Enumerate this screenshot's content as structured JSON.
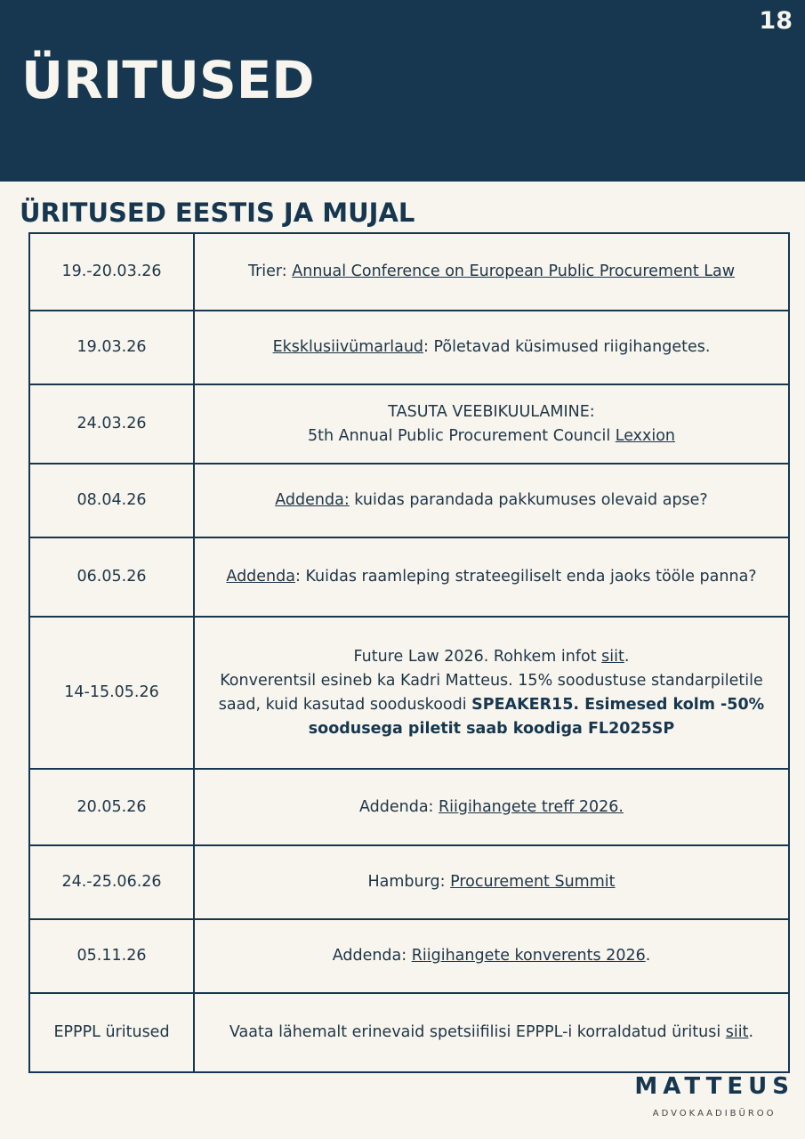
{
  "header": {
    "page_number": "18",
    "title": "ÜRITUSED"
  },
  "section_title": "ÜRITUSED EESTIS JA MUJAL",
  "rows": [
    {
      "date": "19.-20.03.26",
      "h": 87,
      "segments": [
        {
          "t": "Trier: "
        },
        {
          "t": "Annual Conference on European Public Procurement Law",
          "link": true
        }
      ]
    },
    {
      "date": "19.03.26",
      "h": 83,
      "segments": [
        {
          "t": "Eksklusiivümarlaud",
          "link": true
        },
        {
          "t": ": Põletavad küsimused riigihangetes."
        }
      ]
    },
    {
      "date": "24.03.26",
      "h": 89,
      "segments": [
        {
          "t": "TASUTA VEEBIKUULAMINE:"
        },
        {
          "br": true
        },
        {
          "t": "5th Annual Public Procurement Council "
        },
        {
          "t": "Lexxion",
          "link": true
        }
      ]
    },
    {
      "date": "08.04.26",
      "h": 83,
      "segments": [
        {
          "t": "Addenda:",
          "link": true
        },
        {
          "t": " kuidas parandada pakkumuses olevaid apse?"
        }
      ]
    },
    {
      "date": "06.05.26",
      "h": 89,
      "segments": [
        {
          "t": "Addenda",
          "link": true
        },
        {
          "t": ": Kuidas raamleping strateegiliselt enda jaoks tööle panna?"
        }
      ]
    },
    {
      "date": "14-15.05.26",
      "h": 171,
      "segments": [
        {
          "t": "Future Law 2026. Rohkem infot "
        },
        {
          "t": "siit",
          "link": true
        },
        {
          "t": "."
        },
        {
          "br": true
        },
        {
          "t": "Konverentsil esineb ka Kadri Matteus. 15% soodustuse standarpiletile saad, kuid kasutad sooduskoodi "
        },
        {
          "t": "SPEAKER15. Esimesed kolm -50% soodusega piletit saab koodiga FL2025SP",
          "bold": true
        }
      ]
    },
    {
      "date": "20.05.26",
      "h": 86,
      "segments": [
        {
          "t": "Addenda: "
        },
        {
          "t": "Riigihangete treff 2026.",
          "link": true
        }
      ]
    },
    {
      "date": "24.-25.06.26",
      "h": 83,
      "segments": [
        {
          "t": "Hamburg: "
        },
        {
          "t": "Procurement Summit",
          "link": true
        }
      ]
    },
    {
      "date": "05.11.26",
      "h": 83,
      "segments": [
        {
          "t": "Addenda: "
        },
        {
          "t": "Riigihangete konverents 2026",
          "link": true
        },
        {
          "t": "."
        }
      ]
    },
    {
      "date": "EPPPL üritused",
      "h": 89,
      "segments": [
        {
          "t": "Vaata lähemalt erinevaid spetsiifilisi EPPPL-i korraldatud üritusi "
        },
        {
          "t": "siit",
          "link": true
        },
        {
          "t": "."
        }
      ]
    }
  ],
  "logo": {
    "name": "MATTEUS",
    "subtitle": "ADVOKAADIBÜROO"
  }
}
